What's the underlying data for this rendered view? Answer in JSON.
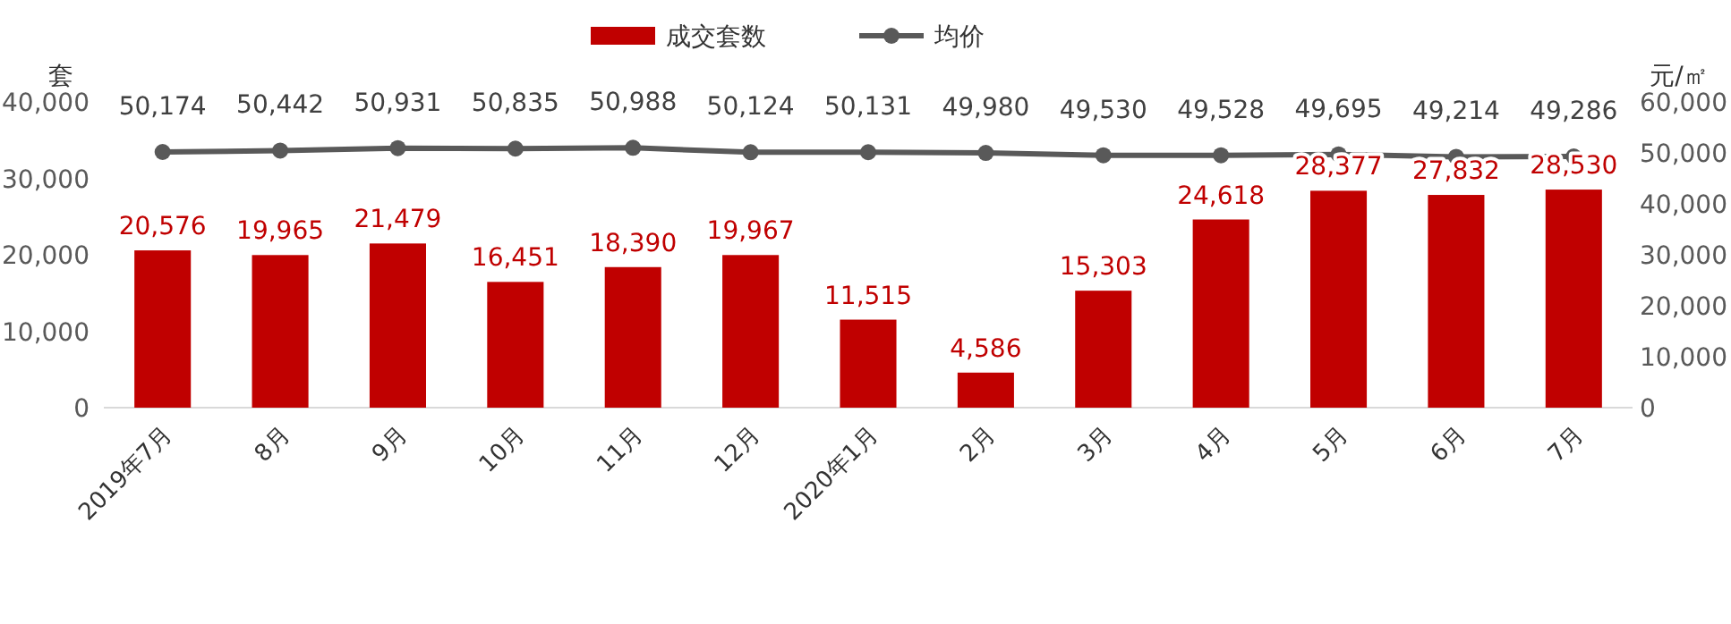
{
  "chart_data": {
    "type": "bar",
    "categories": [
      "2019年7月",
      "8月",
      "9月",
      "10月",
      "11月",
      "12月",
      "2020年1月",
      "2月",
      "3月",
      "4月",
      "5月",
      "6月",
      "7月"
    ],
    "series": [
      {
        "name": "成交套数",
        "color": "#c00000",
        "values": [
          20576,
          19965,
          21479,
          16451,
          18390,
          19967,
          11515,
          4586,
          15303,
          24618,
          28377,
          27832,
          28530
        ],
        "value_labels": [
          "20,576",
          "19,965",
          "21,479",
          "16,451",
          "18,390",
          "19,967",
          "11,515",
          "4,586",
          "15,303",
          "24,618",
          "28,377",
          "27,832",
          "28,530"
        ]
      },
      {
        "name": "均价",
        "type": "line",
        "axis": "y2",
        "color": "#595959",
        "marker": "circle",
        "values": [
          50174,
          50442,
          50931,
          50835,
          50988,
          50124,
          50131,
          49980,
          49530,
          49528,
          49695,
          49214,
          49286
        ],
        "value_labels": [
          "50,174",
          "50,442",
          "50,931",
          "50,835",
          "50,988",
          "50,124",
          "50,131",
          "49,980",
          "49,530",
          "49,528",
          "49,695",
          "49,214",
          "49,286"
        ]
      }
    ],
    "ylabel": "套",
    "y2label": "元/㎡",
    "ylim": [
      0,
      40000
    ],
    "yticks": [
      {
        "value": 0,
        "label": "0"
      },
      {
        "value": 10000,
        "label": "10,000"
      },
      {
        "value": 20000,
        "label": "20,000"
      },
      {
        "value": 30000,
        "label": "30,000"
      },
      {
        "value": 40000,
        "label": "40,000"
      }
    ],
    "y2lim": [
      0,
      60000
    ],
    "y2ticks": [
      {
        "value": 0,
        "label": "0"
      },
      {
        "value": 10000,
        "label": "10,000"
      },
      {
        "value": 20000,
        "label": "20,000"
      },
      {
        "value": 30000,
        "label": "30,000"
      },
      {
        "value": 40000,
        "label": "40,000"
      },
      {
        "value": 50000,
        "label": "50,000"
      },
      {
        "value": 60000,
        "label": "60,000"
      }
    ],
    "legend": "top"
  }
}
